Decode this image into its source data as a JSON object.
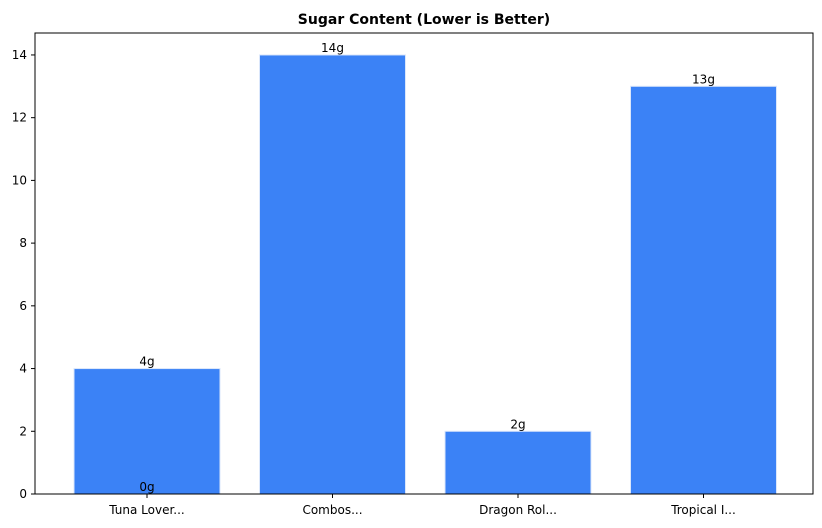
{
  "chart_data": {
    "type": "bar",
    "title": "Sugar Content (Lower is Better)",
    "categories": [
      "Tuna Lover...",
      "Combos...",
      "Dragon Rol...",
      "Tropical I..."
    ],
    "series": [
      {
        "color": "#3b82f6",
        "values": [
          4,
          14,
          2,
          13
        ],
        "value_labels": [
          "4g",
          "14g",
          "2g",
          "13g"
        ]
      },
      {
        "color": "#3b82f6",
        "values": [
          0,
          null,
          null,
          null
        ],
        "value_labels": [
          "0g",
          null,
          null,
          null
        ]
      }
    ],
    "ylim": [
      0,
      14.7
    ],
    "yticks": [
      0,
      2,
      4,
      6,
      8,
      10,
      12,
      14
    ],
    "grid": false
  }
}
